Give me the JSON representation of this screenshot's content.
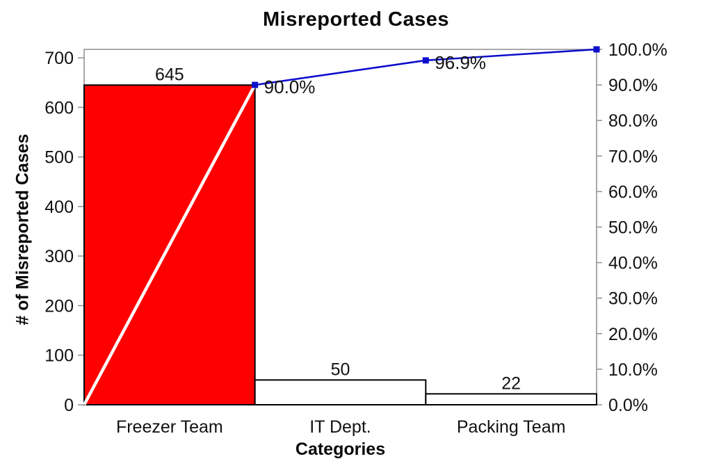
{
  "chart_data": {
    "type": "bar",
    "subtype": "pareto (bars + cumulative percentage line)",
    "title": "Misreported Cases",
    "xlabel": "Categories",
    "ylabel": "# of Misreported Cases",
    "categories": [
      "Freezer Team",
      "IT Dept.",
      "Packing Team"
    ],
    "values": [
      645,
      50,
      22
    ],
    "bar_value_labels": [
      "645",
      "50",
      "22"
    ],
    "bar_fill_colors": [
      "#fe0000",
      "#ffffff",
      "#ffffff"
    ],
    "bar_border_color": "#000000",
    "series": [
      {
        "name": "cases",
        "type": "bar",
        "values": [
          645,
          50,
          22
        ]
      },
      {
        "name": "cumulative-percent",
        "type": "line",
        "values": [
          90.0,
          96.9,
          100.0
        ]
      }
    ],
    "cumulative_percent": [
      90.0,
      96.9,
      100.0
    ],
    "cumulative_point_labels": [
      "90.0%",
      "96.9%",
      ""
    ],
    "line_starts_at_zero": true,
    "line_color": "#0d0ecd",
    "line_first_segment_color": "#ffffff",
    "marker_shape": "square",
    "marker_color": "#0d0ecd",
    "left_axis": {
      "min": 0,
      "max": 717,
      "tick_values": [
        0,
        100,
        200,
        300,
        400,
        500,
        600,
        700
      ],
      "tick_labels": [
        "0",
        "100",
        "200",
        "300",
        "400",
        "500",
        "600",
        "700"
      ]
    },
    "right_axis": {
      "min": 0,
      "max": 100,
      "tick_values": [
        0,
        10,
        20,
        30,
        40,
        50,
        60,
        70,
        80,
        90,
        100
      ],
      "tick_labels": [
        "0.0%",
        "10.0%",
        "20.0%",
        "30.0%",
        "40.0%",
        "50.0%",
        "60.0%",
        "70.0%",
        "80.0%",
        "90.0%",
        "100.0%"
      ]
    },
    "axis_color": "#949494",
    "grid": "off",
    "legend": "none",
    "plot_background": "#ffffff"
  }
}
